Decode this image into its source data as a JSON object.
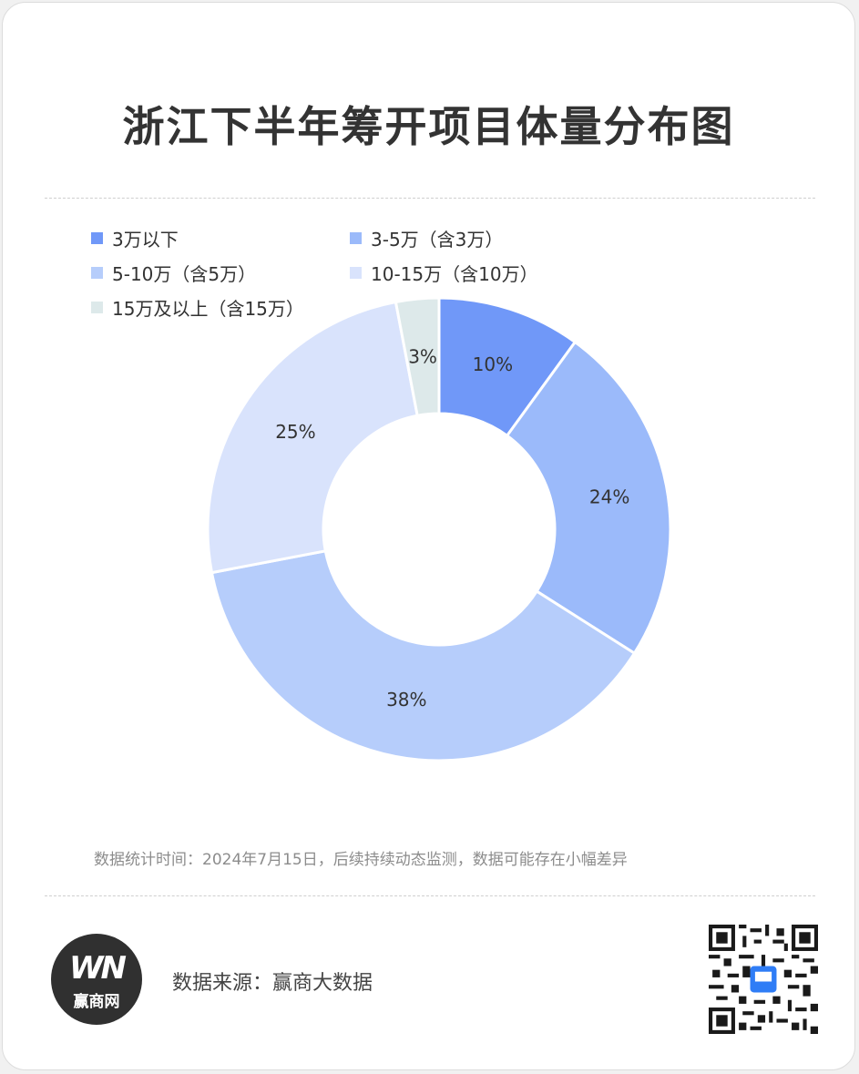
{
  "title": "浙江下半年筹开项目体量分布图",
  "chart_data": {
    "type": "pie",
    "donut": true,
    "title": "浙江下半年筹开项目体量分布图",
    "legend_position": "top",
    "slices": [
      {
        "label": "3万以下",
        "value": 10,
        "display": "10%",
        "color": "#7098f8"
      },
      {
        "label": "3-5万（含3万）",
        "value": 24,
        "display": "24%",
        "color": "#9bbafa"
      },
      {
        "label": "5-10万（含5万）",
        "value": 38,
        "display": "38%",
        "color": "#b6cdfb"
      },
      {
        "label": "10-15万（含10万）",
        "value": 25,
        "display": "25%",
        "color": "#d9e3fc"
      },
      {
        "label": "15万及以上（含15万）",
        "value": 3,
        "display": "3%",
        "color": "#dde9ea"
      }
    ]
  },
  "note": "数据统计时间：2024年7月15日，后续持续动态监测，数据可能存在小幅差异",
  "footer": {
    "logo_mark": "WN",
    "logo_text": "赢商网",
    "source": "数据来源：赢商大数据",
    "qr_icon": "qr-code-icon"
  }
}
